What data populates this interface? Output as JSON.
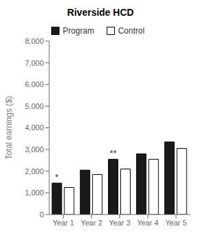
{
  "chart_data": {
    "type": "bar",
    "title": "Riverside HCD",
    "ylabel": "Total earnings ($)",
    "categories": [
      "Year 1",
      "Year 2",
      "Year 3",
      "Year 4",
      "Year 5"
    ],
    "series": [
      {
        "name": "Program",
        "color": "#1a1a1a",
        "values": [
          1450,
          2050,
          2550,
          2800,
          3350
        ]
      },
      {
        "name": "Control",
        "color": "#ffffff",
        "values": [
          1250,
          1850,
          2100,
          2550,
          3050
        ]
      }
    ],
    "ylim": [
      0,
      8000
    ],
    "yticks": [
      0,
      {
        "value": 1000,
        "label": "1,000"
      },
      {
        "value": 2000,
        "label": "2,000"
      },
      {
        "value": 3000,
        "label": "3,000"
      },
      {
        "value": 4000,
        "label": "4,000"
      },
      {
        "value": 5000,
        "label": "5,000"
      },
      {
        "value": 6000,
        "label": "6,000"
      },
      {
        "value": 7000,
        "label": "7,000"
      },
      {
        "value": 8000,
        "label": "8,000"
      }
    ],
    "annotations": [
      {
        "category": "Year 1",
        "series": "Program",
        "text": "*"
      },
      {
        "category": "Year 3",
        "series": "Program",
        "text": "**"
      }
    ],
    "grid": false,
    "legend": "top"
  }
}
